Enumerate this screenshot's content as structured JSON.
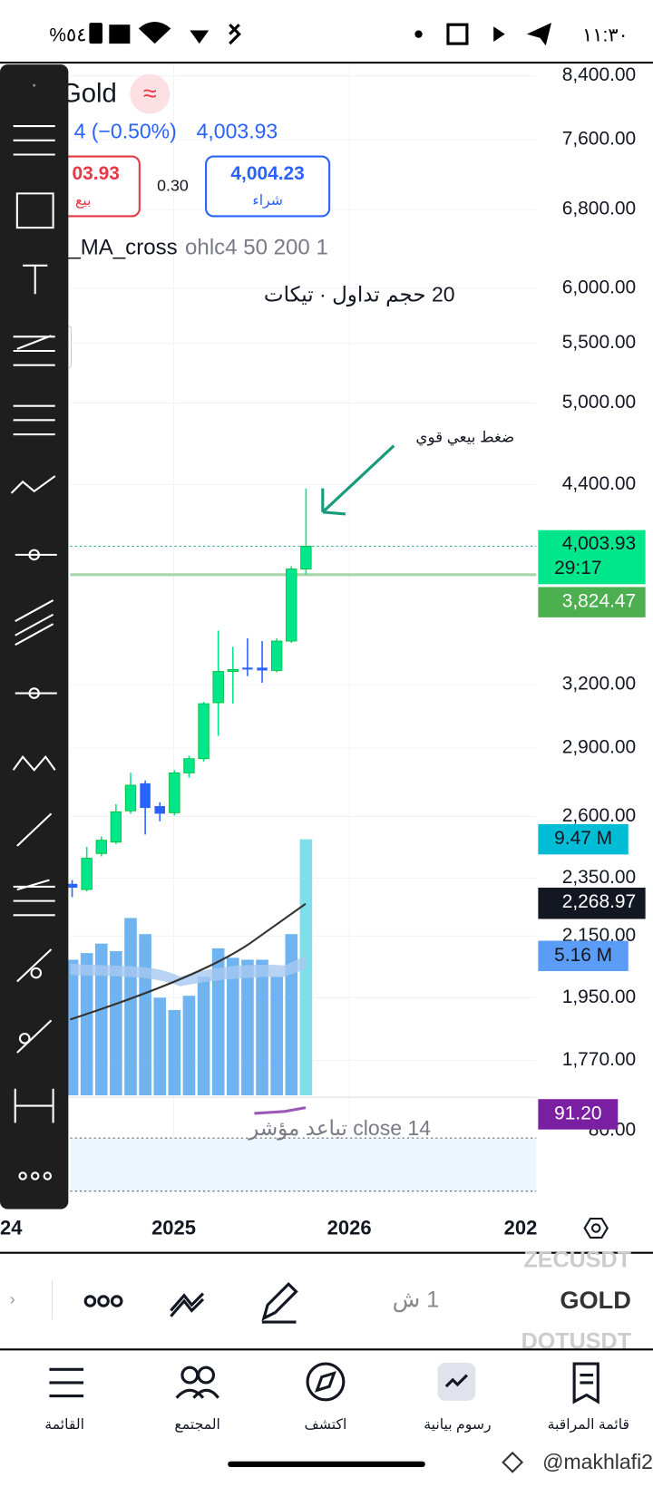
{
  "status_bar": {
    "time": "١١:٣٠",
    "battery": "%٥٤"
  },
  "header": {
    "symbol": "Gold",
    "change": "4 (−0.50%)",
    "last": "4,003.93",
    "sell_price": "03.93",
    "sell_label": "بيع",
    "spread": "0.30",
    "buy_price": "4,004.23",
    "buy_label": "شراء"
  },
  "indicators": {
    "ma_name": "_MA_cross",
    "ma_params": "ohlc4 50 200 1",
    "volume": "20 حجم تداول · تيكات",
    "rsi": "14 close تباعد مؤشر"
  },
  "annotation": "ضغط بيعي قوي",
  "price_axis": [
    "8,400.00",
    "7,600.00",
    "6,800.00",
    "6,000.00",
    "5,500.00",
    "5,000.00",
    "4,400.00",
    "3,200.00",
    "2,900.00",
    "2,600.00",
    "2,350.00",
    "2,150.00",
    "1,950.00",
    "1,770.00",
    "80.00"
  ],
  "price_tags": {
    "last": "4,003.93",
    "countdown": "29:17",
    "line": "3,824.47",
    "volume": "9.47 M",
    "ma": "2,268.97",
    "volume_ma": "5.16 M",
    "rsi": "91.20"
  },
  "time_axis": [
    "24",
    "2025",
    "2026",
    "202"
  ],
  "symbol_bar": {
    "prev": "ZECUSDT",
    "current": "GOLD",
    "next": "DOTUSDT",
    "interval": "1 ش"
  },
  "bottom_nav": [
    "القائمة",
    "المجتمع",
    "اكتشف",
    "رسوم بيانية",
    "قائمة المراقبة"
  ],
  "watermark": "@makhlafi2"
}
